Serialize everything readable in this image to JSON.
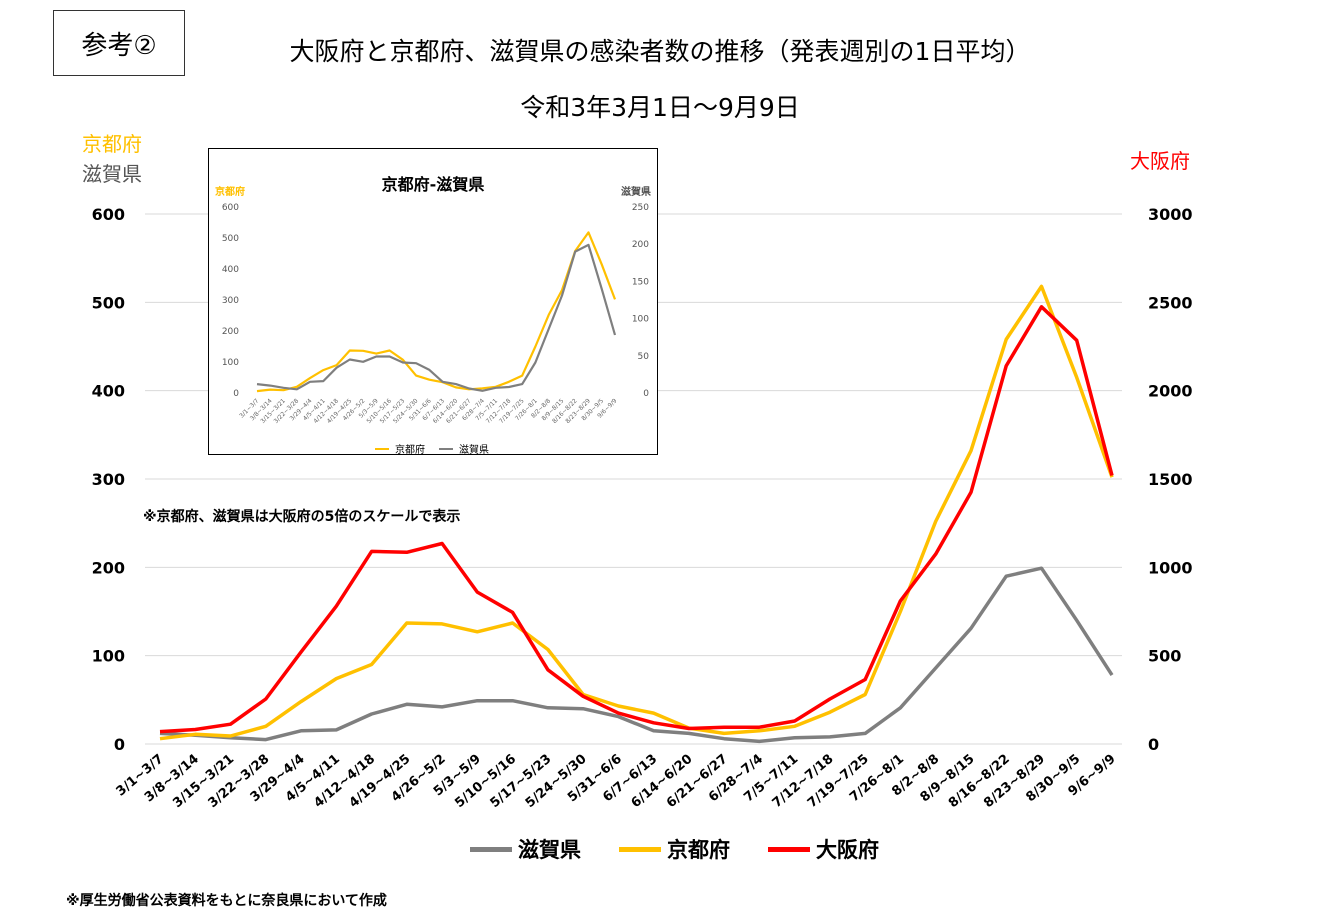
{
  "header": {
    "ref_label": "参考②",
    "title": "大阪府と京都府、滋賀県の感染者数の推移（発表週別の1日平均）",
    "subtitle": "令和3年3月1日～9月9日"
  },
  "axis_titles": {
    "left_line1": "京都府",
    "left_line2": "滋賀県",
    "right": "大阪府"
  },
  "note": "※京都府、滋賀県は大阪府の5倍のスケールで表示",
  "footnote": "※厚生労働省公表資料をもとに奈良県において作成",
  "colors": {
    "shiga": "#7f7f7f",
    "kyoto": "#ffc000",
    "osaka": "#ff0000",
    "left_title": "#ffc000",
    "right_title": "#ff0000"
  },
  "legend": [
    {
      "name": "滋賀県",
      "color": "#7f7f7f"
    },
    {
      "name": "京都府",
      "color": "#ffc000"
    },
    {
      "name": "大阪府",
      "color": "#ff0000"
    }
  ],
  "chart_data": [
    {
      "type": "line",
      "title": "大阪府と京都府、滋賀県の感染者数の推移（発表週別の1日平均）",
      "categories": [
        "3/1~3/7",
        "3/8~3/14",
        "3/15~3/21",
        "3/22~3/28",
        "3/29~4/4",
        "4/5~4/11",
        "4/12~4/18",
        "4/19~4/25",
        "4/26~5/2",
        "5/3~5/9",
        "5/10~5/16",
        "5/17~5/23",
        "5/24~5/30",
        "5/31~6/6",
        "6/7~6/13",
        "6/14~6/20",
        "6/21~6/27",
        "6/28~7/4",
        "7/5~7/11",
        "7/12~7/18",
        "7/19~7/25",
        "7/26~8/1",
        "8/2~8/8",
        "8/9~8/15",
        "8/16~8/22",
        "8/23~8/29",
        "8/30~9/5",
        "9/6~9/9"
      ],
      "left_axis": {
        "ticks": [
          0,
          100,
          200,
          300,
          400,
          500,
          600
        ],
        "ylim": [
          0,
          600
        ]
      },
      "right_axis": {
        "ticks": [
          0,
          500,
          1000,
          1500,
          2000,
          2500,
          3000
        ],
        "ylim": [
          0,
          3000
        ]
      },
      "series": [
        {
          "name": "滋賀県",
          "axis": "left",
          "values": [
            12,
            10,
            7,
            5,
            15,
            16,
            34,
            45,
            42,
            49,
            49,
            41,
            40,
            31,
            15,
            12,
            6,
            3,
            7,
            8,
            12,
            41,
            86,
            131,
            190,
            199,
            140,
            78
          ]
        },
        {
          "name": "京都府",
          "axis": "left",
          "values": [
            6,
            11,
            9,
            20,
            48,
            74,
            90,
            137,
            136,
            127,
            137,
            107,
            56,
            43,
            35,
            18,
            12,
            15,
            20,
            36,
            56,
            150,
            252,
            332,
            458,
            518,
            415,
            302
          ]
        },
        {
          "name": "大阪府",
          "axis": "right",
          "values": [
            70,
            82,
            112,
            255,
            520,
            780,
            1090,
            1085,
            1135,
            860,
            745,
            420,
            270,
            175,
            120,
            88,
            95,
            95,
            130,
            255,
            365,
            810,
            1075,
            1425,
            2140,
            2475,
            2285,
            1520
          ]
        }
      ],
      "legend_position": "bottom"
    },
    {
      "type": "line",
      "title": "京都府-滋賀県",
      "left_axis_title": "京都府",
      "right_axis_title": "滋賀県",
      "left_axis": {
        "ticks": [
          0,
          100,
          200,
          300,
          400,
          500,
          600
        ],
        "ylim": [
          0,
          600
        ]
      },
      "right_axis": {
        "ticks": [
          0,
          50,
          100,
          150,
          200,
          250
        ],
        "ylim": [
          0,
          250
        ]
      },
      "series": [
        {
          "name": "京都府",
          "axis": "left",
          "values": [
            6,
            11,
            9,
            20,
            48,
            74,
            90,
            137,
            136,
            127,
            137,
            107,
            56,
            43,
            35,
            18,
            12,
            15,
            20,
            36,
            56,
            150,
            252,
            332,
            458,
            518,
            415,
            302
          ]
        },
        {
          "name": "滋賀県",
          "axis": "right",
          "values": [
            12,
            10,
            7,
            5,
            15,
            16,
            34,
            45,
            42,
            49,
            49,
            41,
            40,
            31,
            15,
            12,
            6,
            3,
            7,
            8,
            12,
            41,
            86,
            131,
            190,
            199,
            140,
            78
          ]
        }
      ],
      "legend": [
        {
          "name": "京都府",
          "color": "#ffc000"
        },
        {
          "name": "滋賀県",
          "color": "#7f7f7f"
        }
      ],
      "legend_position": "bottom"
    }
  ]
}
